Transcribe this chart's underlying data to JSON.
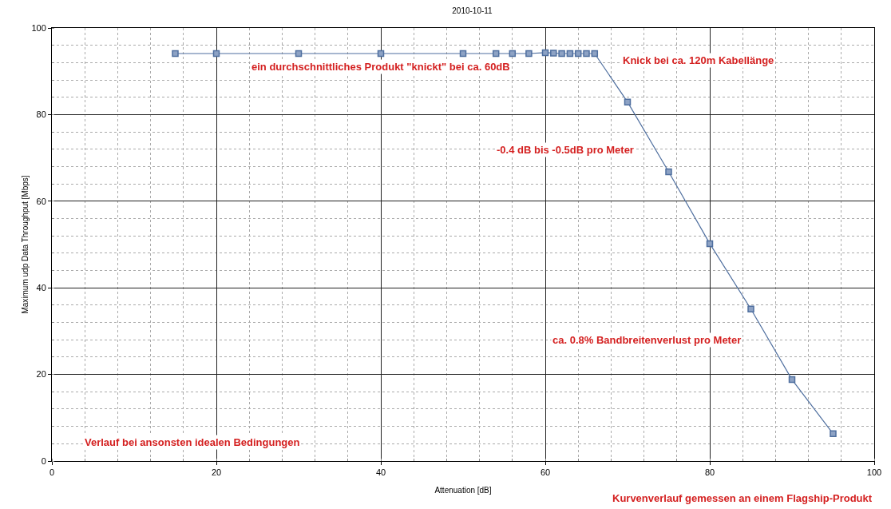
{
  "chart_data": {
    "type": "line",
    "title": "2010-10-11",
    "xlabel": "Attenuation [dB]",
    "ylabel": "Maximum udp Data Throughput [Mbps]",
    "x": [
      15,
      20,
      30,
      40,
      50,
      54,
      56,
      58,
      60,
      61,
      62,
      63,
      64,
      65,
      66,
      70,
      75,
      80,
      85,
      90,
      95
    ],
    "series": [
      {
        "color": "#4f6f9f",
        "values": [
          94.1,
          94.1,
          94.1,
          94.1,
          94.1,
          94.1,
          94.1,
          94.1,
          94.3,
          94.2,
          94.1,
          94.1,
          94.1,
          94.1,
          94.1,
          82.9,
          66.8,
          50.2,
          35.1,
          18.8,
          6.3
        ]
      }
    ],
    "xlim": [
      0,
      100
    ],
    "ylim": [
      0,
      100
    ],
    "xticks": [
      0,
      20,
      40,
      60,
      80,
      100
    ],
    "yticks": [
      0,
      20,
      40,
      60,
      80,
      100
    ],
    "grid": true,
    "marker": "square",
    "line_style": "solid",
    "annotations": [
      "ein durchschnittliches Produkt \"knickt\" bei ca. 60dB",
      "Knick bei ca. 120m Kabellänge",
      "-0.4 dB bis -0.5dB pro Meter",
      "ca. 0.8% Bandbreitenverlust pro Meter",
      "Verlauf bei ansonsten idealen Bedingungen",
      "Kurvenverlauf gemessen an einem Flagship-Produkt"
    ]
  }
}
